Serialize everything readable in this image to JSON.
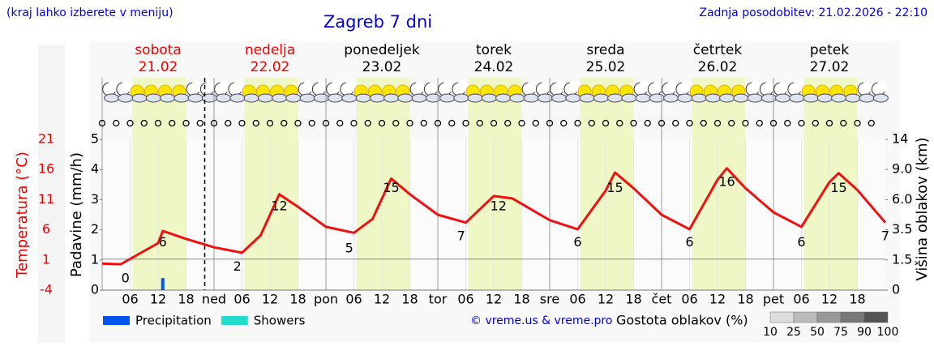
{
  "header": {
    "note": "(kraj lahko izberete v meniju)",
    "updated": "Zadnja posodobitev: 21.02.2026 - 22:10"
  },
  "chart_data": {
    "type": "line",
    "title": "Zagreb 7 dni",
    "days": [
      {
        "name": "sobota",
        "date": "21.02",
        "color": "#ee0000"
      },
      {
        "name": "nedelja",
        "date": "22.02",
        "color": "#ee0000"
      },
      {
        "name": "ponedeljek",
        "date": "23.02",
        "color": "#000000"
      },
      {
        "name": "torek",
        "date": "24.02",
        "color": "#000000"
      },
      {
        "name": "sreda",
        "date": "25.02",
        "color": "#000000"
      },
      {
        "name": "četrtek",
        "date": "26.02",
        "color": "#000000"
      },
      {
        "name": "petek",
        "date": "27.02",
        "color": "#000000"
      }
    ],
    "hour_labels": [
      {
        "value": 6,
        "label": "06"
      },
      {
        "value": 12,
        "label": "12"
      },
      {
        "value": 18,
        "label": "18"
      }
    ],
    "midnight_labels": [
      null,
      "ned",
      "pon",
      "tor",
      "sre",
      "čet",
      "pet"
    ],
    "xlim": [
      0,
      168
    ],
    "now": 22,
    "ylabel": "Temperatura (°C)",
    "ylim": [
      -4,
      21
    ],
    "yticks": [
      -4,
      1,
      6,
      11,
      16,
      21
    ],
    "ytick_color": "#ee0000",
    "y2label": "Padavine (mm/h)",
    "y2lim": [
      0,
      5
    ],
    "y2ticks": [
      0,
      1,
      2,
      3,
      4,
      5
    ],
    "y3label": "Višina oblakov (km)",
    "y3ticks": [
      0,
      1.5,
      3.5,
      {
        "value": 6,
        "label": "6.0"
      },
      {
        "value": 9,
        "label": "9.0"
      },
      14
    ],
    "series": [
      {
        "color": "#ee1111",
        "x": [
          0,
          4,
          12,
          13,
          18,
          24,
          30,
          34,
          38,
          42,
          48,
          54,
          58,
          62,
          66,
          72,
          78,
          84,
          88,
          96,
          102,
          108,
          110,
          114,
          120,
          126,
          132,
          134,
          138,
          144,
          150,
          156,
          158,
          162,
          168
        ],
        "values": [
          0.4,
          0.3,
          3.8,
          5.8,
          4.5,
          3.1,
          2.2,
          5.1,
          11.9,
          9.8,
          6.5,
          5.5,
          7.8,
          14.5,
          11.9,
          8.5,
          7.2,
          11.6,
          11.2,
          7.6,
          6.1,
          12.5,
          15.5,
          12.9,
          8.5,
          6.1,
          14.3,
          16.2,
          12.9,
          8.9,
          6.5,
          13.9,
          15.4,
          12.6,
          7.2
        ]
      },
      {
        "name": "Precipitation",
        "color": "#0055ee",
        "axis": "y2",
        "x": [
          13
        ],
        "values": [
          0.4
        ]
      },
      {
        "name": "Showers",
        "color": "#22ddcc",
        "axis": "y2",
        "x": [],
        "values": []
      }
    ],
    "labels": {
      "x": [
        5,
        13,
        29,
        38,
        53,
        62,
        77,
        85,
        102,
        110,
        126,
        134,
        150,
        158,
        168
      ],
      "values": [
        0,
        6,
        2,
        12,
        5,
        15,
        7,
        12,
        6,
        15,
        6,
        16,
        6,
        15,
        7
      ]
    },
    "credit": "© vreme.us & vreme.pro",
    "cloud_legend": {
      "title": "Gostota oblakov (%)",
      "ticks": [
        10,
        25,
        50,
        75,
        90,
        100
      ],
      "colors": [
        "#dddddd",
        "#bbbbbb",
        "#999999",
        "#777777",
        "#555555"
      ]
    }
  }
}
